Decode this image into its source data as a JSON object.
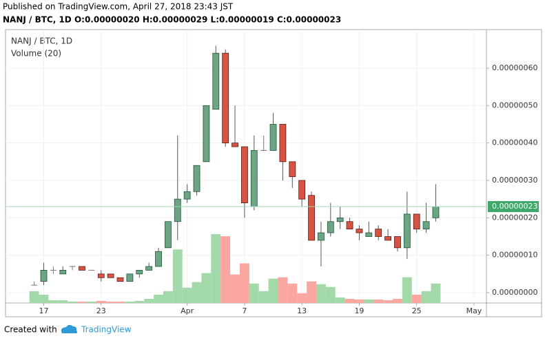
{
  "header": {
    "published": "Published on TradingView.com, April 27, 2018 23:43 JST",
    "symbol_line": "NANJ / BTC, 1D O:0.00000020 H:0.00000029 L:0.00000019 C:0.00000023"
  },
  "footer": {
    "created_with": "Created with",
    "brand": "TradingView"
  },
  "chart_data": {
    "type": "candlestick",
    "legend": [
      "NANJ / BTC, 1D",
      "Volume (20)"
    ],
    "xlim": [
      -3,
      47.3
    ],
    "xticks": [
      {
        "value": 1,
        "label": "17"
      },
      {
        "value": 7,
        "label": "23"
      },
      {
        "value": 16,
        "label": "Apr"
      },
      {
        "value": 22,
        "label": "7"
      },
      {
        "value": 28,
        "label": "13"
      },
      {
        "value": 34,
        "label": "19"
      },
      {
        "value": 40,
        "label": "25"
      },
      {
        "value": 46,
        "label": "May"
      }
    ],
    "ylim": [
      -2.76e-08,
      7.03e-07
    ],
    "yticks": [
      {
        "value": 0,
        "label": "0.00000000"
      },
      {
        "value": 1e-07,
        "label": "0.00000010"
      },
      {
        "value": 2e-07,
        "label": "0.00000020"
      },
      {
        "value": 3e-07,
        "label": "0.00000030"
      },
      {
        "value": 4e-07,
        "label": "0.00000040"
      },
      {
        "value": 5e-07,
        "label": "0.00000050"
      },
      {
        "value": 6e-07,
        "label": "0.00000060"
      }
    ],
    "last_price": {
      "value": 2.3e-07,
      "label": "0.00000023"
    },
    "grid": true,
    "up_color": "#6ba583",
    "down_color": "#d75442",
    "up_volume_color": "#a3d9a9",
    "down_volume_color": "#fba7a1",
    "open": [
      2e-08,
      3e-08,
      6e-08,
      5e-08,
      7e-08,
      7e-08,
      6e-08,
      5e-08,
      5e-08,
      4e-08,
      3e-08,
      5e-08,
      6e-08,
      7e-08,
      1.2e-07,
      1.9e-07,
      2.5e-07,
      2.7e-07,
      3.5e-07,
      4.9e-07,
      6.4e-07,
      4e-07,
      3.9e-07,
      2.3e-07,
      3.8e-07,
      3.8e-07,
      4.5e-07,
      3.5e-07,
      3e-07,
      2.6e-07,
      1.4e-07,
      1.6e-07,
      1.9e-07,
      1.9e-07,
      1.7e-07,
      1.5e-07,
      1.7e-07,
      1.5e-07,
      1.5e-07,
      1.2e-07,
      2.1e-07,
      1.7e-07,
      2e-07
    ],
    "high": [
      3e-08,
      8e-08,
      7e-08,
      7e-08,
      7e-08,
      7e-08,
      6e-08,
      6e-08,
      5e-08,
      4e-08,
      5e-08,
      6e-08,
      8e-08,
      1.2e-07,
      1.9e-07,
      4.2e-07,
      2.9e-07,
      3.4e-07,
      5e-07,
      6.6e-07,
      6.5e-07,
      5e-07,
      3.9e-07,
      4.2e-07,
      4.2e-07,
      4.8e-07,
      4.5e-07,
      3.5e-07,
      3e-07,
      2.7e-07,
      1.9e-07,
      2.4e-07,
      2.3e-07,
      2e-07,
      1.8e-07,
      1.9e-07,
      1.8e-07,
      1.7e-07,
      1.5e-07,
      2.7e-07,
      2.1e-07,
      2.4e-07,
      2.9e-07
    ],
    "low": [
      2e-08,
      2e-08,
      5e-08,
      5e-08,
      6e-08,
      6e-08,
      6e-08,
      3e-08,
      4e-08,
      3e-08,
      3e-08,
      4e-08,
      6e-08,
      7e-08,
      1.2e-07,
      1.4e-07,
      2.4e-07,
      2.6e-07,
      3.5e-07,
      4.9e-07,
      3.9e-07,
      3.9e-07,
      2e-07,
      2.2e-07,
      3.8e-07,
      3.8e-07,
      3e-07,
      2.8e-07,
      2.3e-07,
      1.4e-07,
      7e-08,
      1.5e-07,
      1.7e-07,
      1.7e-07,
      1.4e-07,
      1.5e-07,
      1.4e-07,
      1.4e-07,
      1.1e-07,
      9e-08,
      1.6e-07,
      1.6e-07,
      1.9e-07
    ],
    "close": [
      2e-08,
      6e-08,
      6e-08,
      6e-08,
      7e-08,
      6e-08,
      6e-08,
      4e-08,
      4e-08,
      3e-08,
      5e-08,
      6e-08,
      7e-08,
      1.1e-07,
      1.9e-07,
      2.5e-07,
      2.7e-07,
      3.4e-07,
      5e-07,
      6.4e-07,
      4e-07,
      3.9e-07,
      2.4e-07,
      3.8e-07,
      3.8e-07,
      4.5e-07,
      3.5e-07,
      3.1e-07,
      2.5e-07,
      1.4e-07,
      1.6e-07,
      1.9e-07,
      2e-07,
      1.7e-07,
      1.6e-07,
      1.6e-07,
      1.5e-07,
      1.4e-07,
      1.2e-07,
      2.1e-07,
      1.7e-07,
      1.9e-07,
      2.3e-07
    ],
    "volume": [
      17,
      12,
      4,
      4,
      2,
      2,
      2,
      3,
      2,
      2,
      2,
      3,
      6,
      12,
      17,
      77,
      22,
      30,
      43,
      99,
      96,
      41,
      57,
      28,
      17,
      35,
      37,
      28,
      14,
      31,
      27,
      23,
      8,
      6,
      5,
      5,
      5,
      4,
      6,
      37,
      12,
      17,
      28
    ]
  }
}
